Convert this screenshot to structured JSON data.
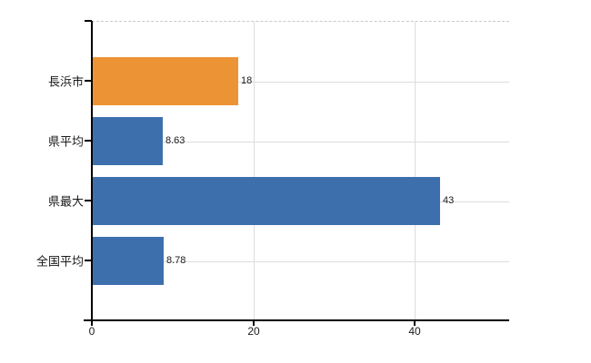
{
  "chart_data": {
    "type": "bar",
    "orientation": "horizontal",
    "title": "",
    "categories": [
      "長浜市",
      "県平均",
      "県最大",
      "全国平均"
    ],
    "values": [
      18,
      8.63,
      43,
      8.78
    ],
    "value_labels": [
      "18",
      "8.63",
      "43",
      "8.78"
    ],
    "bar_colors": [
      "#EC9335",
      "#3E6FAD",
      "#3E6FAD",
      "#3E6FAD"
    ],
    "x_ticks": [
      0,
      20,
      40
    ],
    "x_tick_labels": [
      "0",
      "20",
      "40"
    ],
    "xlim": [
      0,
      51.7
    ],
    "grid": true,
    "legend": false,
    "colors": {
      "highlight": "#EC9335",
      "default": "#3E6FAD",
      "grid": "#DCDCDC",
      "top_border": "#C9C9C9",
      "axis": "#000000",
      "text": "#1A1A1A"
    }
  }
}
